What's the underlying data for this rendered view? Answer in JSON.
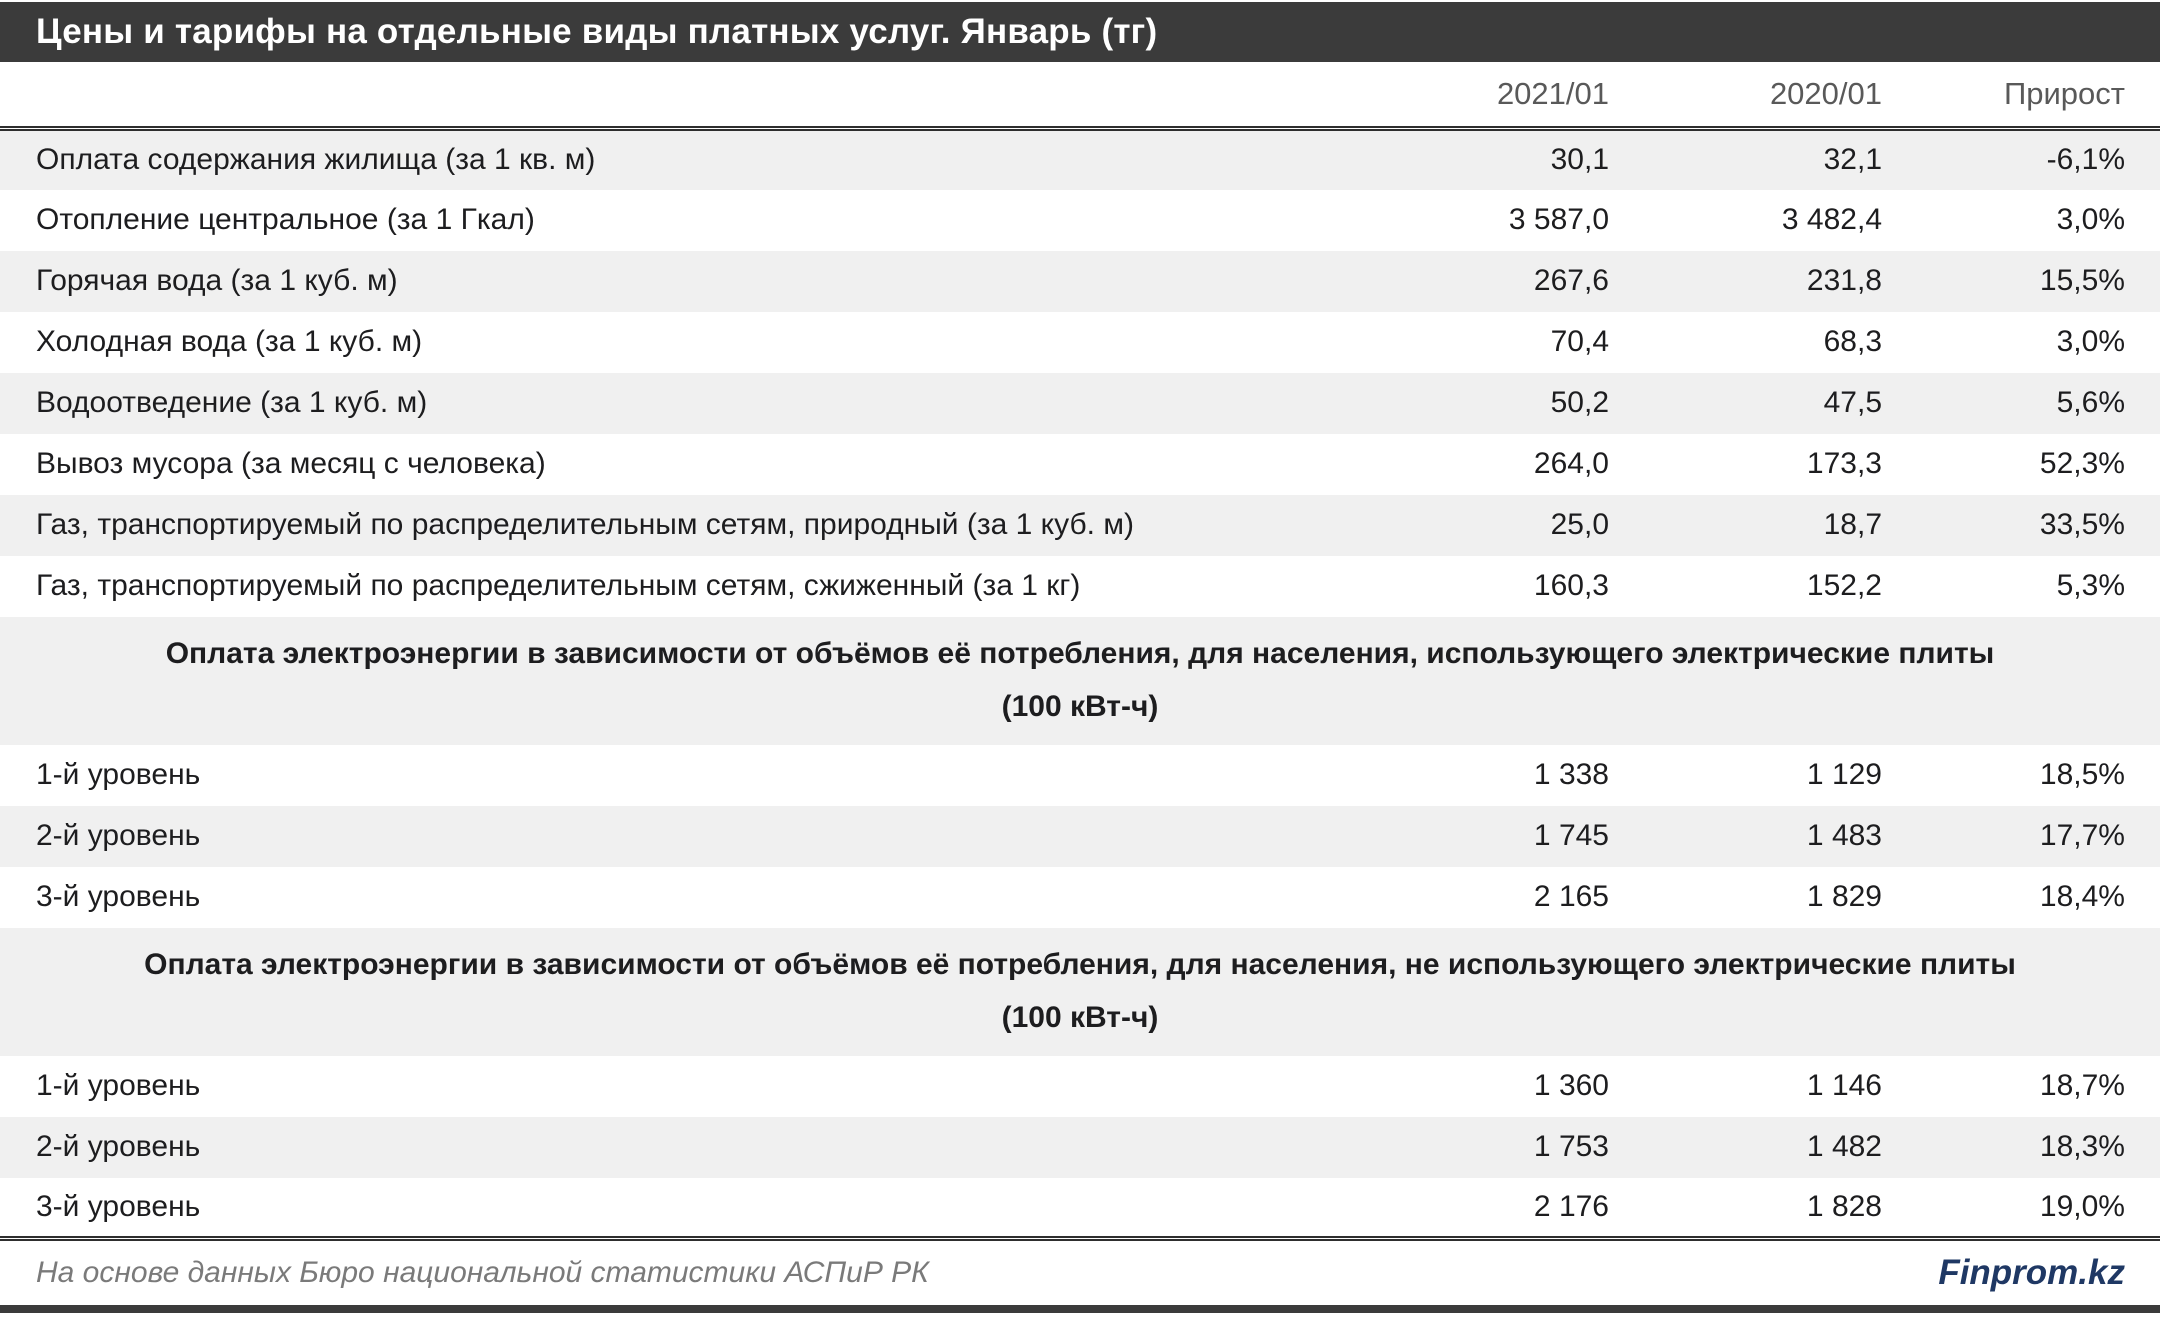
{
  "chart_data": {
    "type": "table",
    "title": "Цены и тарифы на отдельные виды платных услуг. Январь (тг)",
    "columns": [
      "2021/01",
      "2020/01",
      "Прирост"
    ],
    "rows": [
      {
        "type": "data",
        "label": "Оплата содержания жилища (за 1 кв. м)",
        "v2021": "30,1",
        "v2020": "32,1",
        "growth": "-6,1%"
      },
      {
        "type": "data",
        "label": "Отопление центральное (за 1 Гкал)",
        "v2021": "3 587,0",
        "v2020": "3 482,4",
        "growth": "3,0%"
      },
      {
        "type": "data",
        "label": "Горячая вода (за 1 куб. м)",
        "v2021": "267,6",
        "v2020": "231,8",
        "growth": "15,5%"
      },
      {
        "type": "data",
        "label": "Холодная вода (за 1 куб. м)",
        "v2021": "70,4",
        "v2020": "68,3",
        "growth": "3,0%"
      },
      {
        "type": "data",
        "label": "Водоотведение (за 1 куб. м)",
        "v2021": "50,2",
        "v2020": "47,5",
        "growth": "5,6%"
      },
      {
        "type": "data",
        "label": "Вывоз мусора (за месяц с человека)",
        "v2021": "264,0",
        "v2020": "173,3",
        "growth": "52,3%"
      },
      {
        "type": "data",
        "label": "Газ, транспортируемый по распределительным сетям, природный (за 1 куб. м)",
        "v2021": "25,0",
        "v2020": "18,7",
        "growth": "33,5%"
      },
      {
        "type": "data",
        "label": "Газ, транспортируемый по распределительным сетям, сжиженный (за 1 кг)",
        "v2021": "160,3",
        "v2020": "152,2",
        "growth": "5,3%"
      },
      {
        "type": "section",
        "line1": "Оплата электроэнергии в зависимости от объёмов её потребления, для населения, использующего электрические плиты",
        "line2": "(100 кВт-ч)"
      },
      {
        "type": "data",
        "label": "1-й уровень",
        "v2021": "1 338",
        "v2020": "1 129",
        "growth": "18,5%"
      },
      {
        "type": "data",
        "label": "2-й уровень",
        "v2021": "1 745",
        "v2020": "1 483",
        "growth": "17,7%"
      },
      {
        "type": "data",
        "label": "3-й уровень",
        "v2021": "2 165",
        "v2020": "1 829",
        "growth": "18,4%"
      },
      {
        "type": "section",
        "line1": "Оплата электроэнергии в зависимости от объёмов её потребления, для населения, не использующего электрические плиты",
        "line2": "(100 кВт-ч)"
      },
      {
        "type": "data",
        "label": "1-й уровень",
        "v2021": "1 360",
        "v2020": "1 146",
        "growth": "18,7%"
      },
      {
        "type": "data",
        "label": "2-й уровень",
        "v2021": "1 753",
        "v2020": "1 482",
        "growth": "18,3%"
      },
      {
        "type": "data",
        "label": "3-й уровень",
        "v2021": "2 176",
        "v2020": "1 828",
        "growth": "19,0%"
      }
    ]
  },
  "footer": {
    "source": "На основе данных Бюро национальной статистики АСПиР РК",
    "brand": "Finprom.kz"
  },
  "colors": {
    "title_bar_bg": "#3b3b3b",
    "row_shaded_bg": "#f0f0f0",
    "header_text": "#595959",
    "source_text": "#7a7a7a",
    "brand_color": "#1f3864"
  }
}
